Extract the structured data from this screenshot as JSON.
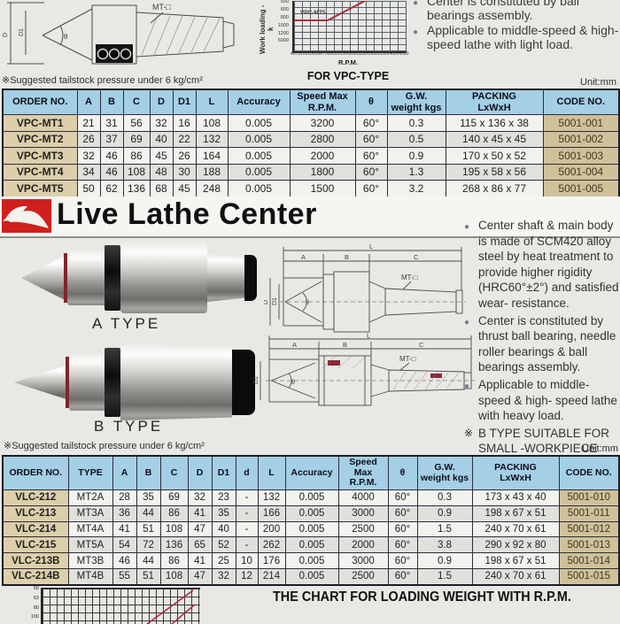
{
  "page": {
    "pressure_note": "※Suggested tailstock pressure under 6 kg/cm²",
    "unit_label": "Unit:mm"
  },
  "section": {
    "title": "Live Lathe Center"
  },
  "drawings": {
    "L": "L",
    "A": "A",
    "B": "B",
    "C": "C",
    "D": "D",
    "D1": "D1",
    "theta": "θ",
    "mt": "MT-□"
  },
  "top": {
    "bullets": [
      {
        "marker": "●",
        "text": "Center is constituted by ball bearings assembly."
      },
      {
        "marker": "●",
        "text": "Applicable to middle-speed & high-speed lathe with light load."
      }
    ]
  },
  "middle": {
    "a_type_label": "A  TYPE",
    "b_type_label": "B  TYPE",
    "bullets": [
      {
        "marker": "●",
        "text": "Center shaft & main body is made of SCM420 alloy steel by heat treatment to provide higher rigidity (HRC60°±2°) and satisfied wear- resistance."
      },
      {
        "marker": "●",
        "text": "Center is constituted by thrust ball bearing, needle roller bearings & ball bearings assembly."
      },
      {
        "marker": "●",
        "text": "Applicable to middle-speed & high- speed lathe with heavy load."
      },
      {
        "marker": "※",
        "text": "B TYPE SUITABLE FOR SMALL -WORKPIECE MACHINING."
      }
    ]
  },
  "vpc_table": {
    "headers": [
      "ORDER NO.",
      "A",
      "B",
      "C",
      "D",
      "D1",
      "L",
      "Accuracy",
      "Speed Max\nR.P.M.",
      "θ",
      "G.W.\nweight kgs",
      "PACKING\nLxWxH",
      "CODE NO."
    ],
    "rows": [
      [
        "VPC-MT1",
        "21",
        "31",
        "56",
        "32",
        "16",
        "108",
        "0.005",
        "3200",
        "60°",
        "0.3",
        "115 x 136 x 38",
        "5001-001"
      ],
      [
        "VPC-MT2",
        "26",
        "37",
        "69",
        "40",
        "22",
        "132",
        "0.005",
        "2800",
        "60°",
        "0.5",
        "140 x 45 x 45",
        "5001-002"
      ],
      [
        "VPC-MT3",
        "32",
        "46",
        "86",
        "45",
        "26",
        "164",
        "0.005",
        "2000",
        "60°",
        "0.9",
        "170 x 50 x 52",
        "5001-003"
      ],
      [
        "VPC-MT4",
        "34",
        "46",
        "108",
        "48",
        "30",
        "188",
        "0.005",
        "1800",
        "60°",
        "1.3",
        "195 x 58 x 56",
        "5001-004"
      ],
      [
        "VPC-MT5",
        "50",
        "62",
        "136",
        "68",
        "45",
        "248",
        "0.005",
        "1500",
        "60°",
        "3.2",
        "268 x 86 x 77",
        "5001-005"
      ]
    ]
  },
  "vlc_table": {
    "headers": [
      "ORDER NO.",
      "TYPE",
      "A",
      "B",
      "C",
      "D",
      "D1",
      "d",
      "L",
      "Accuracy",
      "Speed\nMax\nR.P.M.",
      "θ",
      "G.W.\nweight kgs",
      "PACKING\nLxWxH",
      "CODE NO."
    ],
    "rows": [
      [
        "VLC-212",
        "MT2A",
        "28",
        "35",
        "69",
        "32",
        "23",
        "-",
        "132",
        "0.005",
        "4000",
        "60°",
        "0.3",
        "173 x 43 x 40",
        "5001-010"
      ],
      [
        "VLC-213",
        "MT3A",
        "36",
        "44",
        "86",
        "41",
        "35",
        "-",
        "166",
        "0.005",
        "3000",
        "60°",
        "0.9",
        "198 x 67 x 51",
        "5001-011"
      ],
      [
        "VLC-214",
        "MT4A",
        "41",
        "51",
        "108",
        "47",
        "40",
        "-",
        "200",
        "0.005",
        "2500",
        "60°",
        "1.5",
        "240 x 70 x 61",
        "5001-012"
      ],
      [
        "VLC-215",
        "MT5A",
        "54",
        "72",
        "136",
        "65",
        "52",
        "-",
        "262",
        "0.005",
        "2000",
        "60°",
        "3.8",
        "290 x 92 x 80",
        "5001-013"
      ],
      [
        "VLC-213B",
        "MT3B",
        "46",
        "44",
        "86",
        "41",
        "25",
        "10",
        "176",
        "0.005",
        "3000",
        "60°",
        "0.9",
        "198 x 67 x 51",
        "5001-014"
      ],
      [
        "VLC-214B",
        "MT4B",
        "55",
        "51",
        "108",
        "47",
        "32",
        "12",
        "214",
        "0.005",
        "2500",
        "60°",
        "1.5",
        "240 x 70 x 61",
        "5001-015"
      ]
    ]
  },
  "chart_data": [
    {
      "type": "line",
      "title": "FOR VPC-TYPE",
      "xlabel": "R.P.M.",
      "ylabel": "Work loading - k",
      "series": [
        {
          "name": "VPC-MT5",
          "note": "red curve, flat at 800 then rising; chart cropped at top edge"
        }
      ],
      "x_ticks": [
        "45",
        "70",
        "100",
        "250",
        "500",
        "750",
        "1000",
        "1500",
        "2000",
        "2500",
        "3000",
        "3500",
        "4000",
        "4500"
      ],
      "y_ticks": [
        "500",
        "600",
        "800",
        "1000",
        "1200",
        "6000"
      ],
      "grid": "on",
      "line_color": "#a8303c"
    },
    {
      "type": "line",
      "title": "THE CHART FOR LOADING WEIGHT WITH R.P.M.",
      "y_ticks": [
        "50",
        "63",
        "80",
        "100"
      ],
      "grid": "on",
      "line_color": "#a8303c",
      "note": "chart cropped at bottom edge of page"
    }
  ],
  "vpc_chart": {
    "ylabel": "Work loading - k",
    "xlabel": "R.P.M.",
    "caption": "FOR VPC-TYPE",
    "series_label": "VPC-MT5",
    "y_ticks": [
      "500",
      "600",
      "800",
      "1000",
      "1200",
      "6000"
    ],
    "x_ticks": [
      "45",
      "70",
      "100",
      "250",
      "500",
      "750",
      "1000",
      "1500",
      "2000",
      "2500",
      "3000",
      "3500",
      "4000",
      "4500"
    ]
  },
  "loading_chart": {
    "title": "THE CHART FOR LOADING WEIGHT WITH R.P.M.",
    "y_ticks": [
      "50",
      "63",
      "80",
      "100"
    ]
  }
}
